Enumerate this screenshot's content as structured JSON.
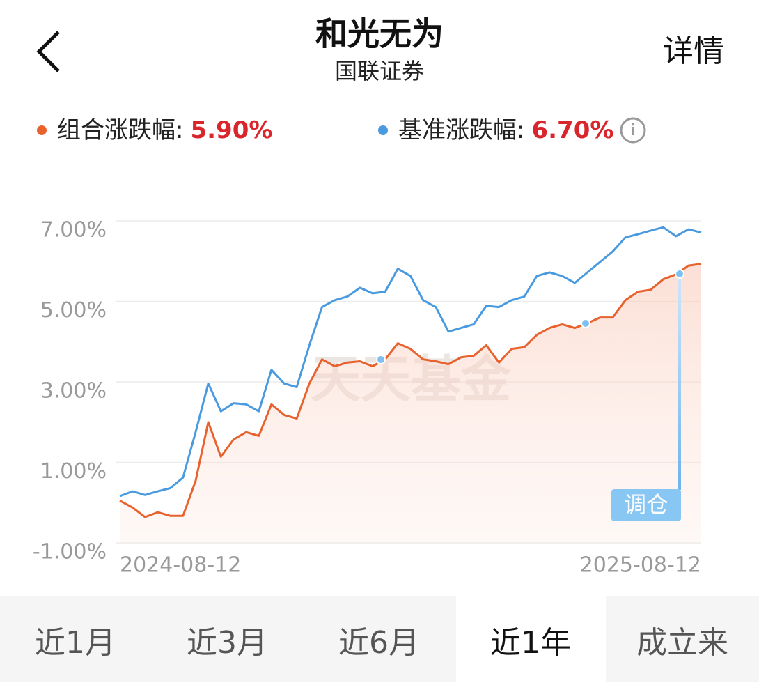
{
  "header": {
    "title": "和光无为",
    "subtitle": "国联证券",
    "action": "详情"
  },
  "chart_data": {
    "type": "line",
    "series": [
      {
        "name": "组合涨跌幅:",
        "color": "#e8622e",
        "change": {
          "value": 5.9,
          "label": "5.90%"
        },
        "values": [
          0.05,
          -0.12,
          -0.36,
          -0.24,
          -0.33,
          -0.33,
          0.54,
          2.0,
          1.14,
          1.57,
          1.75,
          1.66,
          2.44,
          2.18,
          2.09,
          2.96,
          3.56,
          3.39,
          3.48,
          3.51,
          3.39,
          3.56,
          3.96,
          3.82,
          3.56,
          3.51,
          3.44,
          3.61,
          3.65,
          3.91,
          3.48,
          3.82,
          3.86,
          4.17,
          4.34,
          4.43,
          4.34,
          4.46,
          4.6,
          4.6,
          5.03,
          5.24,
          5.29,
          5.55,
          5.67,
          5.89,
          5.93
        ]
      },
      {
        "name": "基准涨跌幅:",
        "color": "#4a9ae0",
        "change": {
          "value": 6.7,
          "label": "6.70%"
        },
        "values": [
          0.16,
          0.28,
          0.19,
          0.28,
          0.36,
          0.62,
          1.75,
          2.96,
          2.27,
          2.47,
          2.44,
          2.27,
          3.3,
          2.96,
          2.87,
          3.91,
          4.86,
          5.03,
          5.12,
          5.34,
          5.2,
          5.24,
          5.81,
          5.63,
          5.03,
          4.86,
          4.25,
          4.34,
          4.43,
          4.89,
          4.86,
          5.03,
          5.12,
          5.63,
          5.72,
          5.63,
          5.46,
          5.72,
          5.98,
          6.24,
          6.59,
          6.67,
          6.76,
          6.84,
          6.62,
          6.79,
          6.71
        ]
      }
    ],
    "categories": [
      "2024-08-12",
      null,
      null,
      null,
      null,
      null,
      null,
      null,
      null,
      null,
      null,
      null,
      null,
      null,
      null,
      null,
      null,
      null,
      null,
      null,
      null,
      null,
      null,
      null,
      null,
      null,
      null,
      null,
      null,
      null,
      null,
      null,
      null,
      null,
      null,
      null,
      null,
      null,
      null,
      null,
      null,
      null,
      null,
      null,
      null,
      null,
      "2025-08-12"
    ],
    "ylim": [
      -1,
      7
    ],
    "yticks": [
      {
        "value": -1,
        "label": "-1.00%"
      },
      {
        "value": 1,
        "label": "1.00%"
      },
      {
        "value": 3,
        "label": "3.00%"
      },
      {
        "value": 5,
        "label": "5.00%"
      },
      {
        "value": 7,
        "label": "7.00%"
      }
    ],
    "grid": true,
    "annotation": "调仓",
    "watermark": "天天基金"
  },
  "tabs": {
    "items": [
      "近1月",
      "近3月",
      "近6月",
      "近1年",
      "成立来"
    ],
    "selected": 3
  }
}
